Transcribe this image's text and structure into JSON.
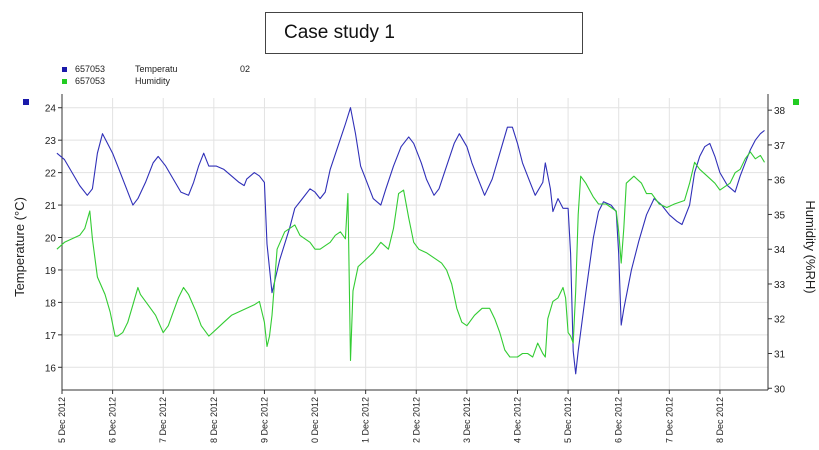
{
  "title": "Case study 1",
  "legend": [
    {
      "id": "657053",
      "label": "Temperatu",
      "extra": "02",
      "color": "#1a1aaa"
    },
    {
      "id": "657053",
      "label": "Humidity",
      "extra": "",
      "color": "#22cc22"
    }
  ],
  "colors": {
    "temperature": "#3030b8",
    "humidity": "#33cc33",
    "grid": "#e2e2e2",
    "axis": "#333333"
  },
  "chart_data": {
    "type": "line",
    "title": "Case study 1",
    "ylabel": "Temperature (°C)",
    "y2label": "Humidity (%RH)",
    "ylim": [
      15.3,
      24.3
    ],
    "y2lim": [
      29.95,
      38.35
    ],
    "yticks": [
      16,
      17,
      18,
      19,
      20,
      21,
      22,
      23,
      24
    ],
    "y2ticks": [
      30,
      31,
      32,
      33,
      34,
      35,
      36,
      37,
      38
    ],
    "xlim": [
      0,
      13.95
    ],
    "xticks": [
      {
        "x": 0,
        "label": "5 Dec 2012"
      },
      {
        "x": 1,
        "label": "6 Dec 2012"
      },
      {
        "x": 2,
        "label": "7 Dec 2012"
      },
      {
        "x": 3,
        "label": "8 Dec 2012"
      },
      {
        "x": 4,
        "label": "9 Dec 2012"
      },
      {
        "x": 5,
        "label": "0 Dec 2012"
      },
      {
        "x": 6,
        "label": "1 Dec 2012"
      },
      {
        "x": 7,
        "label": "2 Dec 2012"
      },
      {
        "x": 8,
        "label": "3 Dec 2012"
      },
      {
        "x": 9,
        "label": "4 Dec 2012"
      },
      {
        "x": 10,
        "label": "5 Dec 2012"
      },
      {
        "x": 11,
        "label": "6 Dec 2012"
      },
      {
        "x": 12,
        "label": "7 Dec 2012"
      },
      {
        "x": 13,
        "label": "8 Dec 2012"
      }
    ],
    "grid": true,
    "series": [
      {
        "name": "657053 Temperatu",
        "axis": "left",
        "points": [
          [
            -0.1,
            22.6
          ],
          [
            0.05,
            22.4
          ],
          [
            0.2,
            22
          ],
          [
            0.35,
            21.6
          ],
          [
            0.5,
            21.3
          ],
          [
            0.6,
            21.5
          ],
          [
            0.7,
            22.6
          ],
          [
            0.8,
            23.2
          ],
          [
            0.9,
            22.9
          ],
          [
            1,
            22.6
          ],
          [
            1.1,
            22.2
          ],
          [
            1.25,
            21.6
          ],
          [
            1.4,
            21
          ],
          [
            1.5,
            21.2
          ],
          [
            1.65,
            21.7
          ],
          [
            1.8,
            22.3
          ],
          [
            1.9,
            22.5
          ],
          [
            2.05,
            22.2
          ],
          [
            2.2,
            21.8
          ],
          [
            2.35,
            21.4
          ],
          [
            2.5,
            21.3
          ],
          [
            2.6,
            21.7
          ],
          [
            2.7,
            22.2
          ],
          [
            2.8,
            22.6
          ],
          [
            2.85,
            22.4
          ],
          [
            2.9,
            22.2
          ],
          [
            3.05,
            22.2
          ],
          [
            3.2,
            22.1
          ],
          [
            3.35,
            21.9
          ],
          [
            3.5,
            21.7
          ],
          [
            3.6,
            21.6
          ],
          [
            3.65,
            21.8
          ],
          [
            3.8,
            22
          ],
          [
            3.9,
            21.9
          ],
          [
            4,
            21.7
          ],
          [
            4.05,
            19.8
          ],
          [
            4.15,
            18.3
          ],
          [
            4.3,
            19.3
          ],
          [
            4.5,
            20.3
          ],
          [
            4.6,
            20.9
          ],
          [
            4.75,
            21.2
          ],
          [
            4.9,
            21.5
          ],
          [
            5,
            21.4
          ],
          [
            5.1,
            21.2
          ],
          [
            5.2,
            21.4
          ],
          [
            5.3,
            22.1
          ],
          [
            5.45,
            22.8
          ],
          [
            5.6,
            23.5
          ],
          [
            5.7,
            24
          ],
          [
            5.8,
            23.2
          ],
          [
            5.9,
            22.2
          ],
          [
            6,
            21.8
          ],
          [
            6.15,
            21.2
          ],
          [
            6.3,
            21
          ],
          [
            6.4,
            21.5
          ],
          [
            6.55,
            22.2
          ],
          [
            6.7,
            22.8
          ],
          [
            6.85,
            23.1
          ],
          [
            6.95,
            22.9
          ],
          [
            7.1,
            22.3
          ],
          [
            7.2,
            21.8
          ],
          [
            7.35,
            21.3
          ],
          [
            7.45,
            21.5
          ],
          [
            7.6,
            22.2
          ],
          [
            7.75,
            22.9
          ],
          [
            7.85,
            23.2
          ],
          [
            8,
            22.8
          ],
          [
            8.1,
            22.3
          ],
          [
            8.25,
            21.7
          ],
          [
            8.35,
            21.3
          ],
          [
            8.5,
            21.8
          ],
          [
            8.65,
            22.6
          ],
          [
            8.8,
            23.4
          ],
          [
            8.9,
            23.4
          ],
          [
            9,
            22.9
          ],
          [
            9.1,
            22.3
          ],
          [
            9.25,
            21.7
          ],
          [
            9.35,
            21.3
          ],
          [
            9.5,
            21.7
          ],
          [
            9.55,
            22.3
          ],
          [
            9.65,
            21.5
          ],
          [
            9.7,
            20.8
          ],
          [
            9.8,
            21.2
          ],
          [
            9.9,
            20.9
          ],
          [
            10,
            20.9
          ],
          [
            10.05,
            19.5
          ],
          [
            10.1,
            16.5
          ],
          [
            10.15,
            15.8
          ],
          [
            10.2,
            16.5
          ],
          [
            10.35,
            18.3
          ],
          [
            10.5,
            20
          ],
          [
            10.6,
            20.8
          ],
          [
            10.7,
            21.1
          ],
          [
            10.85,
            21
          ],
          [
            10.95,
            20.8
          ],
          [
            11,
            19.5
          ],
          [
            11.05,
            17.3
          ],
          [
            11.1,
            17.8
          ],
          [
            11.25,
            19
          ],
          [
            11.4,
            19.9
          ],
          [
            11.55,
            20.7
          ],
          [
            11.7,
            21.2
          ],
          [
            11.85,
            21
          ],
          [
            12,
            20.7
          ],
          [
            12.15,
            20.5
          ],
          [
            12.25,
            20.4
          ],
          [
            12.4,
            21
          ],
          [
            12.5,
            22
          ],
          [
            12.6,
            22.5
          ],
          [
            12.7,
            22.8
          ],
          [
            12.8,
            22.9
          ],
          [
            12.9,
            22.5
          ],
          [
            13,
            22
          ],
          [
            13.15,
            21.6
          ],
          [
            13.3,
            21.4
          ],
          [
            13.4,
            21.9
          ],
          [
            13.5,
            22.3
          ],
          [
            13.6,
            22.7
          ],
          [
            13.7,
            23
          ],
          [
            13.8,
            23.2
          ],
          [
            13.88,
            23.3
          ]
        ]
      },
      {
        "name": "657053 Humidity",
        "axis": "right",
        "points": [
          [
            -0.1,
            34
          ],
          [
            0.05,
            34.2
          ],
          [
            0.2,
            34.3
          ],
          [
            0.35,
            34.4
          ],
          [
            0.45,
            34.6
          ],
          [
            0.55,
            35.1
          ],
          [
            0.6,
            34.3
          ],
          [
            0.7,
            33.2
          ],
          [
            0.85,
            32.7
          ],
          [
            0.95,
            32.2
          ],
          [
            1.05,
            31.5
          ],
          [
            1.1,
            31.5
          ],
          [
            1.2,
            31.6
          ],
          [
            1.3,
            31.9
          ],
          [
            1.4,
            32.4
          ],
          [
            1.5,
            32.9
          ],
          [
            1.55,
            32.7
          ],
          [
            1.7,
            32.4
          ],
          [
            1.85,
            32.1
          ],
          [
            2,
            31.6
          ],
          [
            2.1,
            31.8
          ],
          [
            2.2,
            32.2
          ],
          [
            2.3,
            32.6
          ],
          [
            2.4,
            32.9
          ],
          [
            2.5,
            32.7
          ],
          [
            2.65,
            32.2
          ],
          [
            2.75,
            31.8
          ],
          [
            2.9,
            31.5
          ],
          [
            3.05,
            31.7
          ],
          [
            3.2,
            31.9
          ],
          [
            3.35,
            32.1
          ],
          [
            3.5,
            32.2
          ],
          [
            3.65,
            32.3
          ],
          [
            3.8,
            32.4
          ],
          [
            3.9,
            32.5
          ],
          [
            4,
            31.9
          ],
          [
            4.05,
            31.2
          ],
          [
            4.1,
            31.5
          ],
          [
            4.15,
            32.1
          ],
          [
            4.25,
            34
          ],
          [
            4.4,
            34.5
          ],
          [
            4.5,
            34.6
          ],
          [
            4.6,
            34.7
          ],
          [
            4.7,
            34.4
          ],
          [
            4.8,
            34.3
          ],
          [
            4.9,
            34.2
          ],
          [
            5,
            34
          ],
          [
            5.1,
            34
          ],
          [
            5.2,
            34.1
          ],
          [
            5.3,
            34.2
          ],
          [
            5.4,
            34.4
          ],
          [
            5.5,
            34.5
          ],
          [
            5.6,
            34.3
          ],
          [
            5.65,
            35.6
          ],
          [
            5.7,
            30.8
          ],
          [
            5.75,
            32.8
          ],
          [
            5.85,
            33.5
          ],
          [
            6,
            33.7
          ],
          [
            6.15,
            33.9
          ],
          [
            6.3,
            34.2
          ],
          [
            6.45,
            34
          ],
          [
            6.55,
            34.6
          ],
          [
            6.65,
            35.6
          ],
          [
            6.75,
            35.7
          ],
          [
            6.85,
            34.9
          ],
          [
            6.95,
            34.2
          ],
          [
            7.05,
            34
          ],
          [
            7.2,
            33.9
          ],
          [
            7.4,
            33.7
          ],
          [
            7.5,
            33.6
          ],
          [
            7.6,
            33.4
          ],
          [
            7.7,
            33
          ],
          [
            7.8,
            32.3
          ],
          [
            7.9,
            31.9
          ],
          [
            8,
            31.8
          ],
          [
            8.15,
            32.1
          ],
          [
            8.3,
            32.3
          ],
          [
            8.45,
            32.3
          ],
          [
            8.55,
            32
          ],
          [
            8.65,
            31.6
          ],
          [
            8.75,
            31.1
          ],
          [
            8.85,
            30.9
          ],
          [
            9,
            30.9
          ],
          [
            9.1,
            31
          ],
          [
            9.2,
            31
          ],
          [
            9.3,
            30.9
          ],
          [
            9.4,
            31.3
          ],
          [
            9.5,
            31
          ],
          [
            9.55,
            30.9
          ],
          [
            9.6,
            32
          ],
          [
            9.7,
            32.5
          ],
          [
            9.8,
            32.6
          ],
          [
            9.9,
            32.9
          ],
          [
            9.95,
            32.6
          ],
          [
            10,
            31.6
          ],
          [
            10.05,
            31.5
          ],
          [
            10.1,
            31.3
          ],
          [
            10.15,
            32.8
          ],
          [
            10.2,
            35
          ],
          [
            10.25,
            36.1
          ],
          [
            10.35,
            35.9
          ],
          [
            10.5,
            35.5
          ],
          [
            10.6,
            35.3
          ],
          [
            10.75,
            35.3
          ],
          [
            10.85,
            35.2
          ],
          [
            10.95,
            35.1
          ],
          [
            11,
            34.5
          ],
          [
            11.05,
            33.6
          ],
          [
            11.1,
            34.6
          ],
          [
            11.15,
            35.9
          ],
          [
            11.3,
            36.1
          ],
          [
            11.45,
            35.9
          ],
          [
            11.55,
            35.6
          ],
          [
            11.65,
            35.6
          ],
          [
            11.8,
            35.3
          ],
          [
            11.95,
            35.2
          ],
          [
            12.1,
            35.3
          ],
          [
            12.3,
            35.4
          ],
          [
            12.4,
            35.9
          ],
          [
            12.5,
            36.5
          ],
          [
            12.6,
            36.3
          ],
          [
            12.75,
            36.1
          ],
          [
            12.9,
            35.9
          ],
          [
            13,
            35.7
          ],
          [
            13.1,
            35.8
          ],
          [
            13.2,
            35.9
          ],
          [
            13.3,
            36.2
          ],
          [
            13.4,
            36.3
          ],
          [
            13.5,
            36.6
          ],
          [
            13.6,
            36.8
          ],
          [
            13.7,
            36.6
          ],
          [
            13.8,
            36.7
          ],
          [
            13.88,
            36.5
          ]
        ]
      }
    ]
  }
}
